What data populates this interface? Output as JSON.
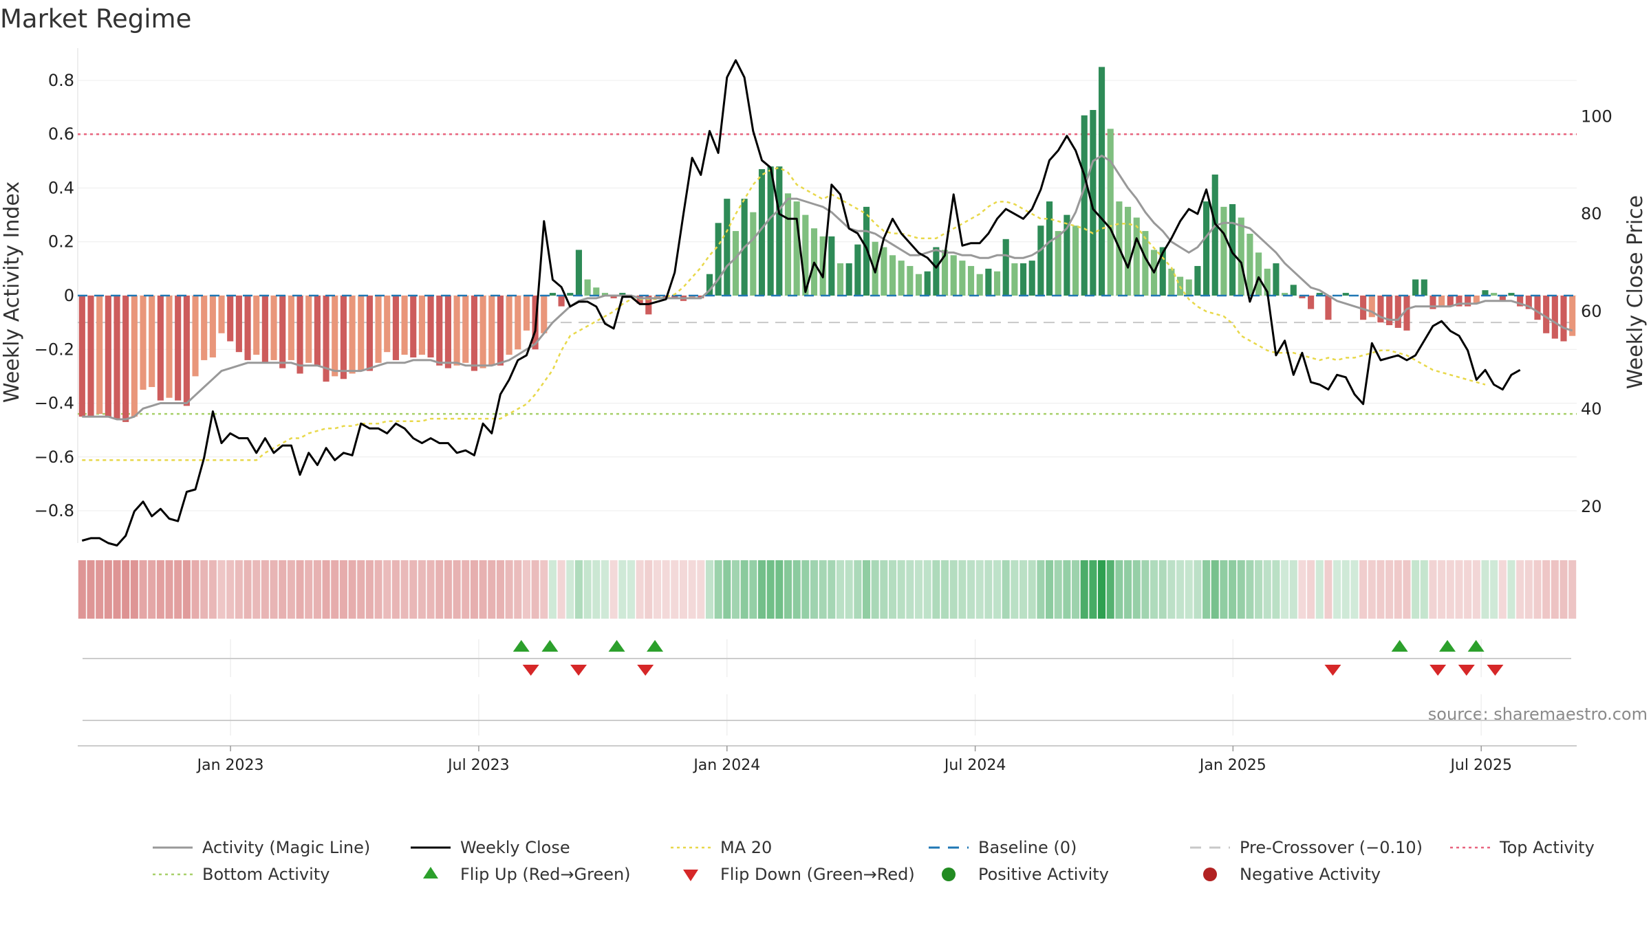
{
  "chart_data": {
    "type": "bar",
    "title": "Market Regime",
    "ylabel": "Weekly Activity Index",
    "y2label": "Weekly Close Price",
    "ylim": [
      -0.92,
      0.92
    ],
    "y2lim": [
      12.5,
      114
    ],
    "yticks": [
      0.8,
      0.6,
      0.4,
      0.2,
      0,
      -0.2,
      -0.4,
      -0.6,
      -0.8
    ],
    "ytick_labels": [
      "0.8",
      "0.6",
      "0.4",
      "0.2",
      "0",
      "−0.2",
      "−0.4",
      "−0.6",
      "−0.8"
    ],
    "y2ticks": [
      100,
      80,
      60,
      40,
      20
    ],
    "y2tick_labels": [
      "100",
      "80",
      "60",
      "40",
      "20"
    ],
    "xlim": [
      "2022-09-12",
      "2025-09-15"
    ],
    "xticks": [
      {
        "date": "2023-01-02",
        "label": "Jan 2023"
      },
      {
        "date": "2023-07-03",
        "label": "Jul 2023"
      },
      {
        "date": "2024-01-01",
        "label": "Jan 2024"
      },
      {
        "date": "2024-07-01",
        "label": "Jul 2024"
      },
      {
        "date": "2025-01-06",
        "label": "Jan 2025"
      },
      {
        "date": "2025-07-07",
        "label": "Jul 2025"
      }
    ],
    "start_week": "2022-09-12",
    "activity": [
      -0.45,
      -0.45,
      -0.44,
      -0.45,
      -0.46,
      -0.47,
      -0.45,
      -0.35,
      -0.34,
      -0.39,
      -0.38,
      -0.39,
      -0.41,
      -0.3,
      -0.24,
      -0.23,
      -0.14,
      -0.17,
      -0.21,
      -0.24,
      -0.22,
      -0.25,
      -0.24,
      -0.27,
      -0.24,
      -0.29,
      -0.25,
      -0.26,
      -0.32,
      -0.3,
      -0.31,
      -0.29,
      -0.28,
      -0.28,
      -0.25,
      -0.21,
      -0.24,
      -0.22,
      -0.23,
      -0.22,
      -0.23,
      -0.26,
      -0.27,
      -0.26,
      -0.25,
      -0.28,
      -0.27,
      -0.26,
      -0.26,
      -0.22,
      -0.2,
      -0.13,
      -0.2,
      -0.14,
      0.01,
      -0.04,
      0.01,
      0.17,
      0.06,
      0.03,
      0.01,
      -0.01,
      0.01,
      0.0,
      -0.03,
      -0.07,
      -0.01,
      -0.01,
      -0.01,
      -0.02,
      -0.01,
      -0.01,
      0.08,
      0.27,
      0.36,
      0.24,
      0.36,
      0.31,
      0.47,
      0.48,
      0.48,
      0.38,
      0.35,
      0.3,
      0.25,
      0.22,
      0.22,
      0.12,
      0.12,
      0.19,
      0.33,
      0.2,
      0.18,
      0.15,
      0.13,
      0.11,
      0.08,
      0.09,
      0.18,
      0.17,
      0.15,
      0.13,
      0.11,
      0.08,
      0.1,
      0.09,
      0.21,
      0.12,
      0.12,
      0.13,
      0.26,
      0.35,
      0.24,
      0.3,
      0.26,
      0.67,
      0.69,
      0.85,
      0.62,
      0.35,
      0.33,
      0.29,
      0.24,
      0.17,
      0.18,
      0.1,
      0.07,
      0.06,
      0.11,
      0.35,
      0.45,
      0.33,
      0.34,
      0.29,
      0.23,
      0.16,
      0.1,
      0.12,
      0.01,
      0.04,
      -0.01,
      -0.05,
      0.01,
      -0.09,
      0.0,
      0.01,
      0.0,
      -0.09,
      -0.08,
      -0.1,
      -0.11,
      -0.12,
      -0.13,
      0.06,
      0.06,
      -0.05,
      -0.04,
      -0.04,
      -0.04,
      -0.04,
      -0.03,
      0.02,
      0.01,
      -0.02,
      0.01,
      -0.04,
      -0.05,
      -0.09,
      -0.14,
      -0.16,
      -0.17,
      -0.15
    ],
    "magic_line": [
      -0.45,
      -0.45,
      -0.45,
      -0.45,
      -0.46,
      -0.46,
      -0.45,
      -0.42,
      -0.41,
      -0.4,
      -0.4,
      -0.4,
      -0.4,
      -0.37,
      -0.34,
      -0.31,
      -0.28,
      -0.27,
      -0.26,
      -0.25,
      -0.25,
      -0.25,
      -0.25,
      -0.25,
      -0.25,
      -0.26,
      -0.26,
      -0.26,
      -0.27,
      -0.28,
      -0.28,
      -0.28,
      -0.28,
      -0.27,
      -0.26,
      -0.25,
      -0.25,
      -0.25,
      -0.24,
      -0.24,
      -0.24,
      -0.25,
      -0.25,
      -0.25,
      -0.26,
      -0.26,
      -0.26,
      -0.26,
      -0.25,
      -0.24,
      -0.22,
      -0.2,
      -0.18,
      -0.14,
      -0.1,
      -0.07,
      -0.04,
      -0.02,
      -0.01,
      -0.01,
      0.0,
      0.0,
      0.0,
      0.0,
      -0.01,
      -0.01,
      -0.01,
      -0.01,
      -0.01,
      -0.01,
      -0.01,
      -0.01,
      0.02,
      0.06,
      0.11,
      0.14,
      0.18,
      0.21,
      0.25,
      0.29,
      0.32,
      0.36,
      0.36,
      0.35,
      0.34,
      0.33,
      0.31,
      0.28,
      0.25,
      0.24,
      0.24,
      0.23,
      0.21,
      0.19,
      0.17,
      0.15,
      0.15,
      0.16,
      0.17,
      0.16,
      0.16,
      0.15,
      0.15,
      0.14,
      0.14,
      0.15,
      0.15,
      0.14,
      0.14,
      0.15,
      0.17,
      0.2,
      0.22,
      0.25,
      0.31,
      0.4,
      0.5,
      0.52,
      0.5,
      0.45,
      0.4,
      0.36,
      0.31,
      0.27,
      0.24,
      0.2,
      0.18,
      0.16,
      0.18,
      0.22,
      0.26,
      0.27,
      0.27,
      0.26,
      0.25,
      0.22,
      0.19,
      0.16,
      0.12,
      0.09,
      0.06,
      0.03,
      0.02,
      0.0,
      -0.02,
      -0.03,
      -0.04,
      -0.05,
      -0.06,
      -0.08,
      -0.09,
      -0.09,
      -0.05,
      -0.04,
      -0.04,
      -0.04,
      -0.04,
      -0.04,
      -0.03,
      -0.03,
      -0.03,
      -0.02,
      -0.02,
      -0.02,
      -0.02,
      -0.03,
      -0.04,
      -0.06,
      -0.08,
      -0.1,
      -0.12,
      -0.13
    ],
    "weekly_close": [
      13.0,
      13.5,
      13.5,
      12.5,
      12.0,
      14.0,
      19.0,
      21.0,
      18.0,
      19.5,
      17.5,
      17.0,
      23.0,
      23.5,
      30.0,
      39.5,
      33.0,
      35.0,
      34.0,
      34.0,
      31.0,
      34.0,
      31.0,
      32.5,
      32.5,
      26.5,
      31.0,
      28.5,
      32.0,
      29.5,
      31.0,
      30.5,
      37.0,
      36.0,
      36.0,
      35.0,
      37.0,
      36.0,
      34.0,
      33.0,
      34.0,
      33.0,
      33.0,
      31.0,
      31.5,
      30.5,
      37.0,
      35.0,
      43.0,
      46.0,
      50.0,
      51.0,
      56.0,
      78.5,
      66.5,
      65.0,
      61.0,
      62.0,
      62.0,
      61.0,
      57.5,
      56.5,
      63.0,
      63.0,
      61.5,
      61.5,
      62.0,
      62.5,
      68.0,
      80.0,
      91.5,
      88.0,
      97.0,
      92.5,
      108.0,
      111.5,
      108.0,
      97.0,
      91.0,
      89.5,
      80.0,
      79.0,
      79.0,
      64.0,
      70.0,
      67.0,
      86.0,
      84.0,
      77.0,
      76.0,
      73.0,
      68.0,
      75.0,
      79.0,
      76.0,
      74.0,
      72.0,
      71.0,
      69.0,
      71.5,
      84.0,
      73.5,
      74.0,
      74.0,
      76.0,
      79.0,
      81.0,
      80.0,
      79.0,
      81.0,
      85.0,
      91.0,
      93.0,
      96.0,
      93.0,
      88.0,
      81.0,
      79.0,
      77.0,
      73.0,
      69.0,
      75.0,
      71.0,
      68.0,
      72.0,
      75.0,
      78.5,
      81.0,
      80.0,
      85.0,
      78.0,
      76.0,
      72.0,
      70.0,
      62.0,
      67.0,
      64.0,
      51.0,
      54.0,
      47.0,
      51.5,
      45.5,
      45.0,
      44.0,
      47.0,
      46.5,
      43.0,
      41.0,
      53.5,
      50.0,
      50.5,
      51.0,
      50.0,
      51.0,
      54.0,
      57.0,
      58.0,
      56.0,
      55.0,
      52.0,
      46.0,
      48.0,
      45.0,
      44.0,
      47.0,
      48.0
    ],
    "ma20": [
      29.5,
      29.5,
      29.5,
      29.5,
      29.5,
      29.5,
      29.5,
      29.5,
      29.5,
      29.5,
      29.5,
      29.5,
      29.5,
      29.5,
      29.5,
      29.5,
      29.5,
      29.5,
      29.5,
      29.5,
      29.5,
      31.0,
      32.0,
      33.0,
      34.0,
      34.0,
      35.0,
      35.5,
      36.0,
      36.0,
      36.5,
      36.5,
      37.0,
      37.0,
      37.0,
      37.5,
      37.5,
      37.5,
      37.5,
      37.5,
      38.0,
      38.0,
      38.0,
      38.0,
      38.0,
      38.0,
      38.0,
      38.0,
      38.0,
      39.0,
      40.0,
      41.0,
      43.0,
      45.5,
      48.0,
      52.0,
      55.0,
      56.0,
      57.0,
      58.0,
      59.0,
      60.0,
      61.5,
      62.5,
      62.5,
      62.5,
      62.5,
      63.0,
      63.5,
      65.0,
      67.0,
      69.0,
      71.5,
      73.5,
      76.5,
      80.0,
      83.0,
      86.0,
      88.0,
      89.0,
      89.5,
      88.5,
      86.0,
      85.0,
      84.0,
      83.0,
      84.0,
      83.0,
      82.0,
      81.0,
      80.0,
      78.0,
      76.5,
      76.0,
      76.0,
      75.5,
      75.0,
      75.0,
      75.0,
      76.0,
      77.0,
      78.0,
      79.0,
      80.0,
      81.5,
      82.5,
      82.5,
      82.0,
      81.0,
      80.0,
      79.0,
      79.0,
      78.5,
      78.0,
      77.5,
      77.0,
      76.0,
      77.0,
      77.5,
      78.0,
      78.0,
      77.5,
      75.0,
      73.0,
      71.0,
      69.0,
      65.0,
      62.5,
      61.0,
      60.0,
      59.5,
      59.0,
      57.5,
      55.0,
      54.0,
      53.0,
      52.0,
      51.5,
      51.5,
      51.5,
      51.0,
      50.5,
      50.0,
      50.5,
      50.0,
      50.5,
      50.5,
      51.0,
      51.5,
      52.0,
      52.0,
      51.5,
      51.0,
      50.0,
      49.0,
      48.0,
      47.5,
      47.0,
      46.5,
      46.0,
      45.5,
      45.0
    ],
    "baseline": 0,
    "pre_crossover": -0.1,
    "top_activity": 0.6,
    "bottom_activity": -0.44,
    "flip_up_weeks": [
      46,
      49,
      56,
      60,
      138,
      143,
      146
    ],
    "flip_down_weeks": [
      47,
      52,
      59,
      131,
      142,
      145,
      148
    ],
    "colors": {
      "pos_strong": "#2e8b57",
      "pos_weak": "#7fbf7f",
      "neg_strong": "#cd5c5c",
      "neg_weak": "#e9967a",
      "magic_line": "#999999",
      "weekly_close": "#000000",
      "ma20": "#e8d84a",
      "baseline": "#1f77b4",
      "pre_crossover": "#c8c8c8",
      "top_activity": "#e8647e",
      "bottom_activity": "#a8d06a",
      "flip_up": "#2ca02c",
      "flip_down": "#d62728",
      "positive_activity": "#228b22",
      "negative_activity": "#b22222"
    },
    "legend_location": "bottom",
    "legend": [
      {
        "label": "Activity (Magic Line)",
        "marker": "line-gray"
      },
      {
        "label": "Weekly Close",
        "marker": "line-black"
      },
      {
        "label": "MA 20",
        "marker": "dotted-yellow"
      },
      {
        "label": "Baseline (0)",
        "marker": "dashed-blue"
      },
      {
        "label": "Pre-Crossover (−0.10)",
        "marker": "dashed-gray"
      },
      {
        "label": "Top Activity",
        "marker": "dotted-red"
      },
      {
        "label": "Bottom Activity",
        "marker": "dotted-green"
      },
      {
        "label": "Flip Up (Red→Green)",
        "marker": "triangle-up-green"
      },
      {
        "label": "Flip Down (Green→Red)",
        "marker": "triangle-down-red"
      },
      {
        "label": "Positive Activity",
        "marker": "circle-green"
      },
      {
        "label": "Negative Activity",
        "marker": "circle-red"
      }
    ]
  },
  "source": "source: sharemaestro.com"
}
